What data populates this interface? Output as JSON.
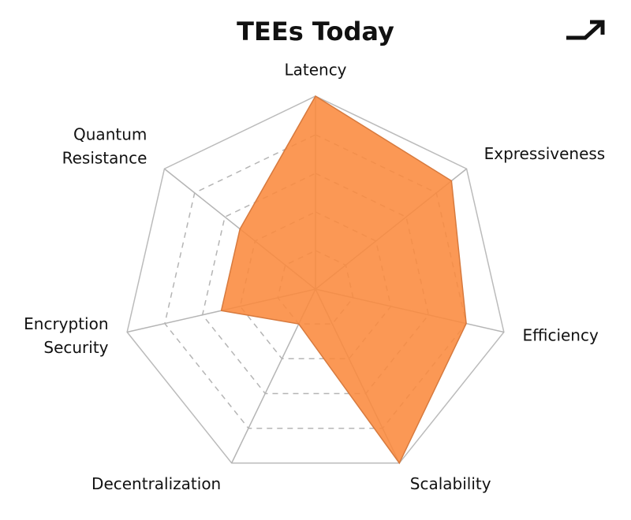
{
  "chart_data": {
    "type": "radar",
    "title": "TEEs Today",
    "categories": [
      "Latency",
      "Expressiveness",
      "Efficiency",
      "Scalability",
      "Decentralization",
      "Encryption Security",
      "Quantum Resistance"
    ],
    "series": [
      {
        "name": "TEEs",
        "color": "#fb8a3e",
        "values": [
          5,
          4.5,
          4,
          5,
          1,
          2.5,
          2.5
        ]
      }
    ],
    "rlim": [
      0,
      5
    ],
    "rticks": [
      1,
      2,
      3,
      4,
      5
    ],
    "grid": true
  }
}
